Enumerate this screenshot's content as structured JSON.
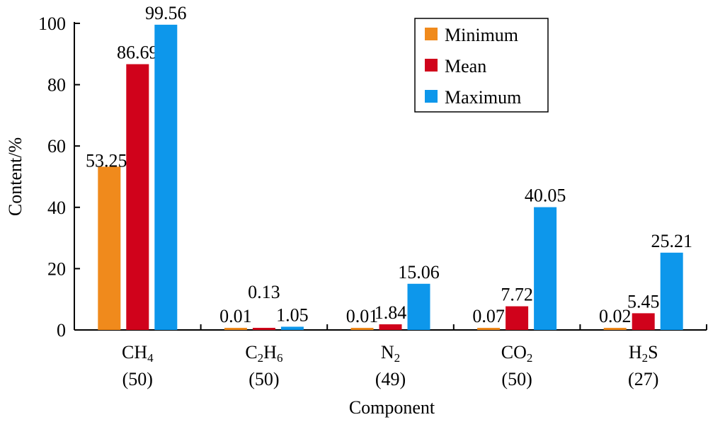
{
  "chart_data": {
    "type": "bar",
    "xlabel": "Component",
    "ylabel": "Content/%",
    "ylim": [
      0,
      100
    ],
    "yticks": [
      "0",
      "20",
      "40",
      "60",
      "80",
      "100"
    ],
    "legend_position": "top-right",
    "categories": [
      {
        "base": "CH",
        "sub": "4",
        "tail": "",
        "count": "(50)"
      },
      {
        "base": "C",
        "sub": "2",
        "mid": "H",
        "sub2": "6",
        "tail": "",
        "count": "(50)"
      },
      {
        "base": "N",
        "sub": "2",
        "tail": "",
        "count": "(49)"
      },
      {
        "base": "CO",
        "sub": "2",
        "tail": "",
        "count": "(50)"
      },
      {
        "base": "H",
        "sub": "2",
        "tail": "S",
        "count": "(27)"
      }
    ],
    "series": [
      {
        "name": "Minimum",
        "color": "#F08A1C",
        "values": [
          53.25,
          0.01,
          0.01,
          0.07,
          0.02
        ],
        "labels": [
          "53.25",
          "0.01",
          "0.01",
          "0.07",
          "0.02"
        ]
      },
      {
        "name": "Mean",
        "color": "#D0021B",
        "values": [
          86.69,
          0.13,
          1.84,
          7.72,
          5.45
        ],
        "labels": [
          "86.69",
          "0.13",
          "1.84",
          "7.72",
          "5.45"
        ]
      },
      {
        "name": "Maximum",
        "color": "#0D97EB",
        "values": [
          99.56,
          1.05,
          15.06,
          40.05,
          25.21
        ],
        "labels": [
          "99.56",
          "1.05",
          "15.06",
          "40.05",
          "25.21"
        ]
      }
    ]
  }
}
